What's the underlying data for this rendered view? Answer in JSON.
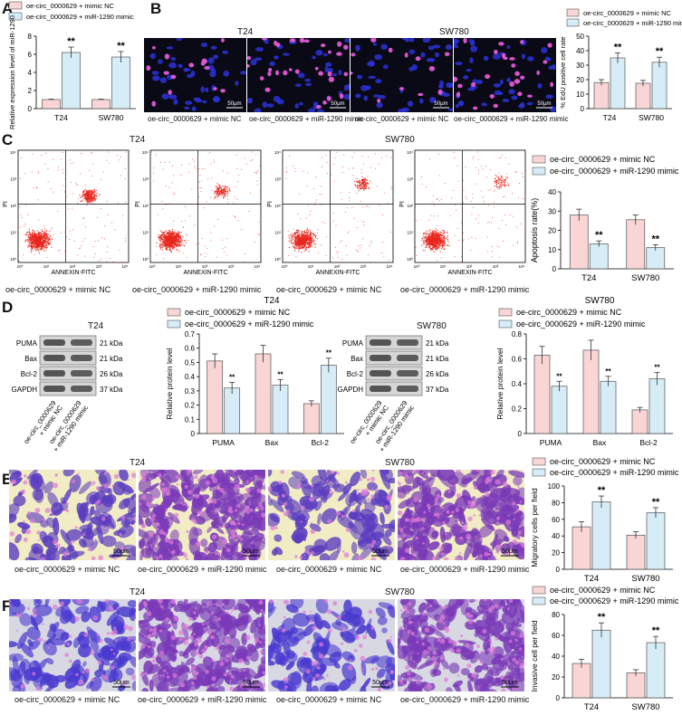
{
  "panels": {
    "A": "A",
    "B": "B",
    "C": "C",
    "D": "D",
    "E": "E",
    "F": "F"
  },
  "groups": {
    "nc": "oe-circ_0000629 + mimic NC",
    "mimic": "oe-circ_0000629 + miR-1290 mimic",
    "nc_break": [
      "oe-circ_0000629",
      "+ mimic NC"
    ],
    "mimic_break": [
      "oe-circ_0000629",
      "+ miR-1290 mimic"
    ]
  },
  "cells": {
    "t24": "T24",
    "sw780": "SW780"
  },
  "colors": {
    "nc": "#f9d5d5",
    "mimic": "#d6ecf6",
    "stroke": "#555555"
  },
  "sig": "**",
  "scale_bar": "50μm",
  "flow": {
    "xlabel": "ANNEXIN-FITC",
    "ylabel": "PI"
  },
  "blot": {
    "proteins": [
      "PUMA",
      "Bax",
      "Bcl-2",
      "GAPDH"
    ],
    "sizes": [
      "21 kDa",
      "21 kDa",
      "26 kDa",
      "37 kDa"
    ]
  },
  "chart_data": [
    {
      "id": "A",
      "type": "bar",
      "ylabel": "Relative expression level of miR-1290",
      "categories": [
        "T24",
        "SW780"
      ],
      "ylim": [
        0,
        8
      ],
      "yticks": [
        0,
        2,
        4,
        6,
        8
      ],
      "series": [
        {
          "name": "oe-circ_0000629 + mimic NC",
          "values": [
            1.0,
            1.0
          ],
          "err": [
            0.05,
            0.05
          ]
        },
        {
          "name": "oe-circ_0000629 + miR-1290 mimic",
          "values": [
            6.2,
            5.7
          ],
          "err": [
            0.6,
            0.6
          ]
        }
      ],
      "sig": [
        true,
        true
      ],
      "legend": "top-left"
    },
    {
      "id": "B",
      "type": "bar",
      "ylabel": "% EdU positive cell rate",
      "categories": [
        "T24",
        "SW780"
      ],
      "ylim": [
        0,
        50
      ],
      "yticks": [
        0,
        10,
        20,
        30,
        40,
        50
      ],
      "series": [
        {
          "name": "oe-circ_0000629 + mimic NC",
          "values": [
            18,
            17.5
          ],
          "err": [
            2,
            2
          ]
        },
        {
          "name": "oe-circ_0000629 + miR-1290 mimic",
          "values": [
            35,
            32
          ],
          "err": [
            3.5,
            3.5
          ]
        }
      ],
      "sig": [
        true,
        true
      ],
      "legend": "top"
    },
    {
      "id": "C",
      "type": "bar",
      "ylabel": "Apoptosis rate(%)",
      "categories": [
        "T24",
        "SW780"
      ],
      "ylim": [
        0,
        40
      ],
      "yticks": [
        0,
        10,
        20,
        30,
        40
      ],
      "series": [
        {
          "name": "oe-circ_0000629 + mimic NC",
          "values": [
            28,
            25.5
          ],
          "err": [
            3,
            2.5
          ]
        },
        {
          "name": "oe-circ_0000629 + miR-1290 mimic",
          "values": [
            13,
            11
          ],
          "err": [
            1.5,
            1.5
          ]
        }
      ],
      "sig": [
        true,
        true
      ],
      "legend": "top"
    },
    {
      "id": "D1",
      "type": "bar",
      "title": "T24",
      "ylabel": "Relative protein level",
      "categories": [
        "PUMA",
        "Bax",
        "Bcl-2"
      ],
      "ylim": [
        0,
        0.7
      ],
      "yticks": [
        0,
        0.1,
        0.2,
        0.3,
        0.4,
        0.5,
        0.6,
        0.7
      ],
      "series": [
        {
          "name": "oe-circ_0000629 + mimic NC",
          "values": [
            0.51,
            0.56,
            0.21
          ],
          "err": [
            0.05,
            0.06,
            0.02
          ]
        },
        {
          "name": "oe-circ_0000629 + miR-1290 mimic",
          "values": [
            0.32,
            0.34,
            0.48
          ],
          "err": [
            0.04,
            0.04,
            0.05
          ]
        }
      ],
      "sig": [
        true,
        true,
        true
      ],
      "legend": "top"
    },
    {
      "id": "D2",
      "type": "bar",
      "title": "SW780",
      "ylabel": "Relative protein level",
      "categories": [
        "PUMA",
        "Bax",
        "Bcl-2"
      ],
      "ylim": [
        0,
        0.8
      ],
      "yticks": [
        0,
        0.2,
        0.4,
        0.6,
        0.8
      ],
      "series": [
        {
          "name": "oe-circ_0000629 + mimic NC",
          "values": [
            0.63,
            0.67,
            0.19
          ],
          "err": [
            0.07,
            0.08,
            0.02
          ]
        },
        {
          "name": "oe-circ_0000629 + miR-1290 mimic",
          "values": [
            0.38,
            0.42,
            0.44
          ],
          "err": [
            0.04,
            0.04,
            0.05
          ]
        }
      ],
      "sig": [
        true,
        true,
        true
      ],
      "legend": "top"
    },
    {
      "id": "E",
      "type": "bar",
      "ylabel": "Migratory cells per field",
      "categories": [
        "T24",
        "SW780"
      ],
      "ylim": [
        0,
        100
      ],
      "yticks": [
        0,
        20,
        40,
        60,
        80,
        100
      ],
      "series": [
        {
          "name": "oe-circ_0000629 + mimic NC",
          "values": [
            51,
            41
          ],
          "err": [
            6,
            4
          ]
        },
        {
          "name": "oe-circ_0000629 + miR-1290 mimic",
          "values": [
            81,
            68
          ],
          "err": [
            7,
            6
          ]
        }
      ],
      "sig": [
        true,
        true
      ],
      "legend": "top"
    },
    {
      "id": "F",
      "type": "bar",
      "ylabel": "Invasive cell per field",
      "categories": [
        "T24",
        "SW780"
      ],
      "ylim": [
        0,
        80
      ],
      "yticks": [
        0,
        20,
        40,
        60,
        80
      ],
      "series": [
        {
          "name": "oe-circ_0000629 + mimic NC",
          "values": [
            33,
            24
          ],
          "err": [
            4,
            3
          ]
        },
        {
          "name": "oe-circ_0000629 + miR-1290 mimic",
          "values": [
            65,
            53
          ],
          "err": [
            7,
            6
          ]
        }
      ],
      "sig": [
        true,
        true
      ],
      "legend": "top"
    }
  ]
}
